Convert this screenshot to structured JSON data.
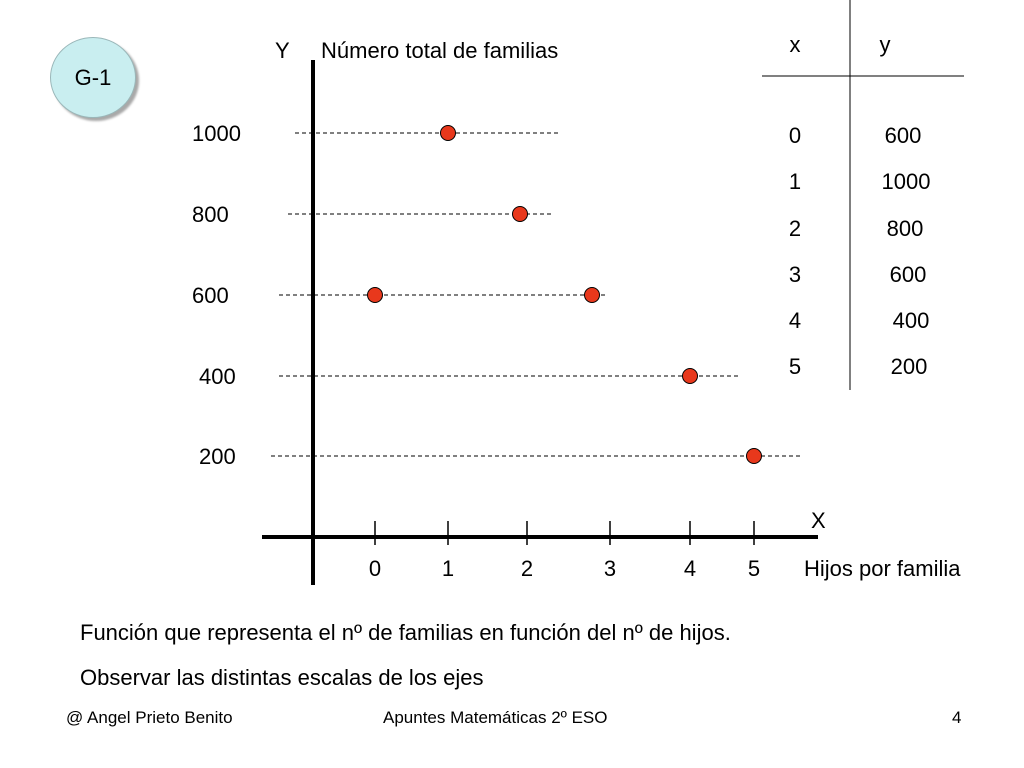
{
  "slide": {
    "badge": "G-1",
    "caption_1": "Función que representa el nº de familias en función del nº de hijos.",
    "caption_2": "Observar las distintas escalas de los ejes",
    "footer_left": "@ Angel Prieto Benito",
    "footer_center": "Apuntes Matemáticas 2º ESO",
    "footer_right": "4"
  },
  "chart_data": {
    "type": "scatter",
    "title": "",
    "xlabel": "Hijos por familia",
    "ylabel": "Número total de familias",
    "x_axis_letter": "X",
    "y_axis_letter": "Y",
    "x_ticks": [
      "0",
      "1",
      "2",
      "3",
      "4",
      "5"
    ],
    "y_ticks": [
      "1000",
      "800",
      "600",
      "400",
      "200"
    ],
    "points": [
      {
        "x": 0,
        "y": 600
      },
      {
        "x": 1,
        "y": 1000
      },
      {
        "x": 2,
        "y": 800
      },
      {
        "x": 3,
        "y": 600
      },
      {
        "x": 4,
        "y": 400
      },
      {
        "x": 5,
        "y": 200
      }
    ],
    "marker_color": "#e8381c",
    "grid": "dashed horizontal guide lines",
    "table": {
      "headers": [
        "x",
        "y"
      ],
      "rows": [
        [
          "0",
          "600"
        ],
        [
          "1",
          "1000"
        ],
        [
          "2",
          "800"
        ],
        [
          "3",
          "600"
        ],
        [
          "4",
          "400"
        ],
        [
          "5",
          "200"
        ]
      ]
    }
  }
}
